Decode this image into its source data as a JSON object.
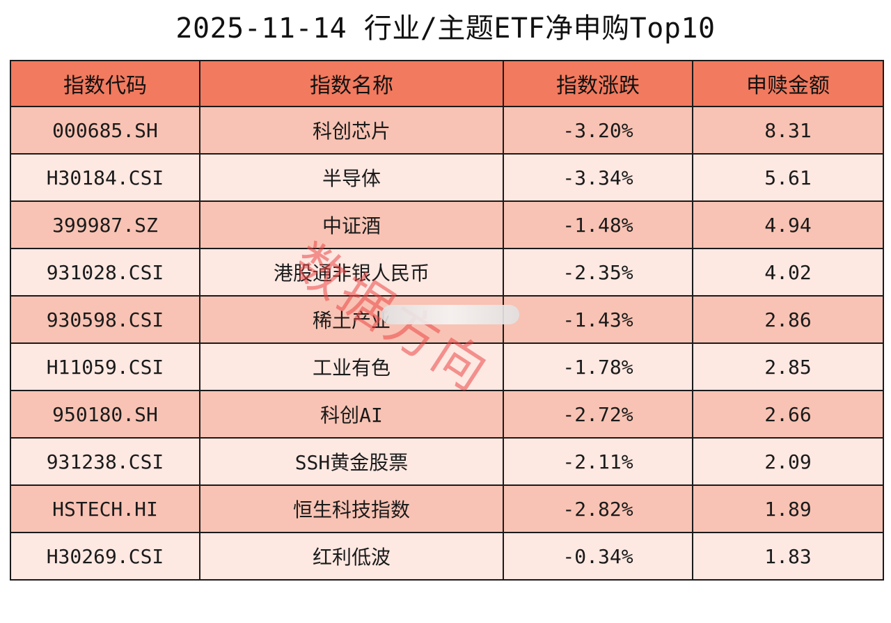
{
  "title": "2025-11-14 行业/主题ETF净申购Top10",
  "table": {
    "headers": [
      "指数代码",
      "指数名称",
      "指数涨跌",
      "申赎金额"
    ],
    "rows": [
      [
        "000685.SH",
        "科创芯片",
        "-3.20%",
        "8.31"
      ],
      [
        "H30184.CSI",
        "半导体",
        "-3.34%",
        "5.61"
      ],
      [
        "399987.SZ",
        "中证酒",
        "-1.48%",
        "4.94"
      ],
      [
        "931028.CSI",
        "港股通非银人民币",
        "-2.35%",
        "4.02"
      ],
      [
        "930598.CSI",
        "稀土产业",
        "-1.43%",
        "2.86"
      ],
      [
        "H11059.CSI",
        "工业有色",
        "-1.78%",
        "2.85"
      ],
      [
        "950180.SH",
        "科创AI",
        "-2.72%",
        "2.66"
      ],
      [
        "931238.CSI",
        "SSH黄金股票",
        "-2.11%",
        "2.09"
      ],
      [
        "HSTECH.HI",
        "恒生科技指数",
        "-2.82%",
        "1.89"
      ],
      [
        "H30269.CSI",
        "红利低波",
        "-0.34%",
        "1.83"
      ]
    ]
  },
  "watermark": {
    "text": "数据方向",
    "color": "#eb4646"
  },
  "colors": {
    "header_bg": "#f27a5e",
    "row_odd_bg": "#f8c3b4",
    "row_even_bg": "#fde8e2",
    "border": "#1a1a1a"
  }
}
